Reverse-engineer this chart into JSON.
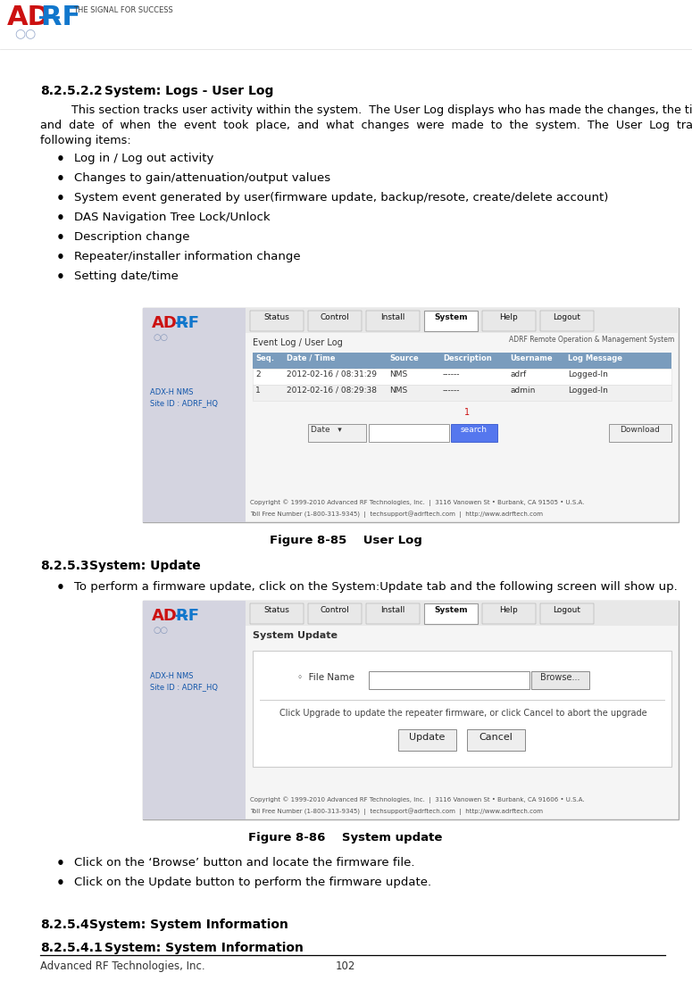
{
  "page_width": 7.75,
  "page_height": 10.99,
  "bg_color": "#ffffff",
  "section_title": "8.2.5.2.2    System: Logs - User Log",
  "body_indent": "        This section tracks user activity within the system.  The User Log displays who has made the changes, the time",
  "body_line2": "and  date  of  when  the  event  took  place,  and  what  changes  were  made  to  the  system.  The  User  Log  tracks  the",
  "body_line3": "following items:",
  "bullet_items": [
    "Log in / Log out activity",
    "Changes to gain/attenuation/output values",
    "System event generated by user(firmware update, backup/resote, create/delete account)",
    "DAS Navigation Tree Lock/Unlock",
    "Description change",
    "Repeater/installer information change",
    "Setting date/time"
  ],
  "figure1_caption": "Figure 8-85    User Log",
  "section2_title": "8.2.5.3    System: Update",
  "section2_bullet": "To perform a firmware update, click on the System:Update tab and the following screen will show up.",
  "figure2_caption": "Figure 8-86    System update",
  "section2_bullets2": [
    "Click on the ‘Browse’ button and locate the firmware file.",
    "Click on the Update button to perform the firmware update."
  ],
  "section3_title": "8.2.5.4    System: System Information",
  "section4_title": "8.2.5.4.1    System: System Information",
  "footer_left": "Advanced RF Technologies, Inc.",
  "footer_center": "102",
  "nav_items": [
    "Status",
    "Control",
    "Install",
    "System",
    "Help",
    "Logout"
  ],
  "table_headers": [
    "Seq.",
    "Date / Time",
    "Source",
    "Description",
    "Username",
    "Log Message"
  ],
  "table_rows": [
    [
      "2",
      "2012-02-16 / 08:31:29",
      "NMS",
      "------",
      "adrf",
      "Logged-In"
    ],
    [
      "1",
      "2012-02-16 / 08:29:38",
      "NMS",
      "------",
      "admin",
      "Logged-In"
    ]
  ],
  "copyright1": "Copyright © 1999-2010 Advanced RF Technologies, Inc.  |  3116 Vanowen St • Burbank, CA 91505 • U.S.A.",
  "copyright2": "Toll Free Number (1-800-313-9345)  |  techsupport@adrftech.com  |  http://www.adrftech.com",
  "text_color": "#000000",
  "header_color": "#000000",
  "sidebar_color": "#d4d4e0",
  "nav_color": "#e8e8e8",
  "thead_color": "#7a9cbd",
  "fig_border_color": "#aaaaaa",
  "search_btn_color": "#5577ee",
  "logo_red": "#cc1111",
  "logo_blue": "#1177cc",
  "sidebar_text_blue": "#1155aa"
}
